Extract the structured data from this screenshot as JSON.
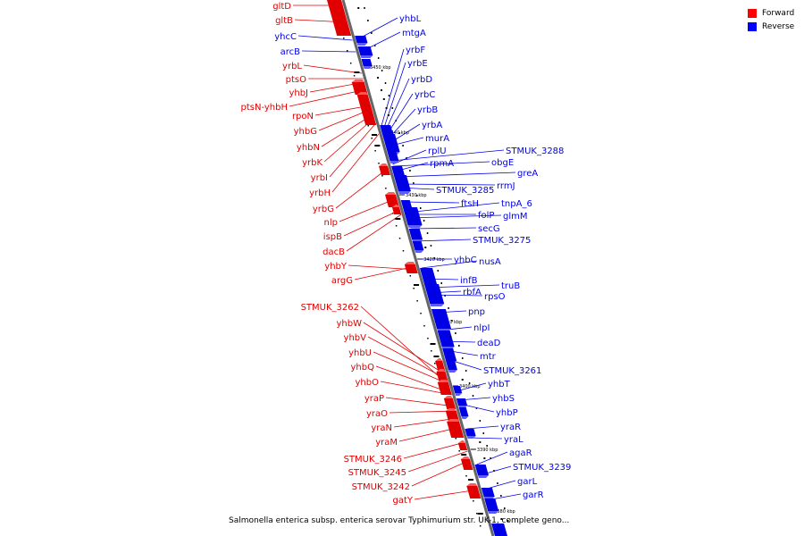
{
  "caption": "Salmonella enterica subsp. enterica serovar Typhimurium str. UK-1, complete geno...",
  "legend": [
    {
      "label": "Forward",
      "color": "#ff0000"
    },
    {
      "label": "Reverse",
      "color": "#0000ff"
    }
  ],
  "colors": {
    "forward": "#e00000",
    "reverse": "#0000e6",
    "backbone": "#666666"
  },
  "ticks": [
    "3450 kbp",
    "3440 kbp",
    "3430 kbp",
    "3420 kbp",
    "3410 kbp",
    "3400 kbp",
    "3390 kbp",
    "3380 kbp"
  ],
  "forward_genes": [
    "gltD",
    "gltB",
    "yhcC",
    "arcB",
    "yrbL",
    "ptsO",
    "yhbJ",
    "ptsN-yhbH",
    "rpoN",
    "yhbG",
    "yhbN",
    "yrbK",
    "yrbI",
    "yrbH",
    "yrbG",
    "nlp",
    "ispB",
    "dacB",
    "yhbY",
    "argG",
    "STMUK_3262",
    "yhbW",
    "yhbV",
    "yhbU",
    "yhbQ",
    "yhbO",
    "yraP",
    "yraO",
    "yraN",
    "yraM",
    "STMUK_3246",
    "STMUK_3245",
    "STMUK_3242",
    "gatY"
  ],
  "reverse_genes": [
    "yhbL",
    "mtgA",
    "yrbF",
    "yrbE",
    "yrbD",
    "yrbC",
    "yrbB",
    "yrbA",
    "murA",
    "rplU",
    "rpmA",
    "STMUK_3288",
    "obgE",
    "greA",
    "rrmJ",
    "STMUK_3285",
    "ftsH",
    "tnpA_6",
    "folP",
    "glmM",
    "secG",
    "STMUK_3275",
    "yhbC",
    "nusA",
    "infB",
    "truB",
    "rbfA",
    "rpsO",
    "pnp",
    "nlpI",
    "deaD",
    "mtr",
    "STMUK_3261",
    "yhbT",
    "yhbS",
    "yhbP",
    "yraR",
    "yraL",
    "agaR",
    "STMUK_3239",
    "garL",
    "garR"
  ]
}
